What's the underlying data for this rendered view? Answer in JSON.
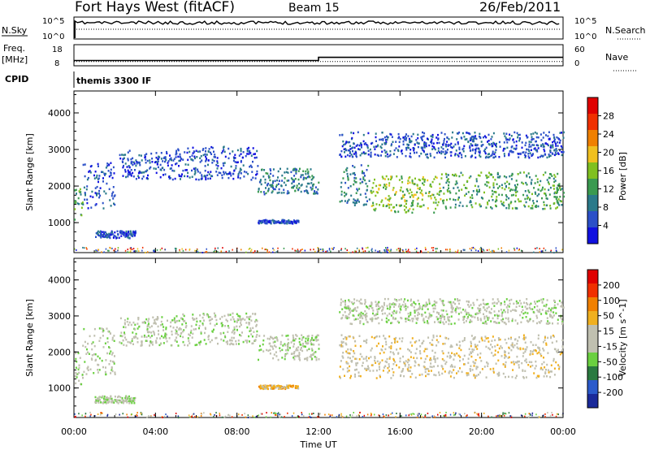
{
  "header": {
    "station": "Fort Hays West (fitACF)",
    "beam": "Beam 15",
    "date": "26/Feb/2011"
  },
  "top_panels": {
    "nsky_label": "N.Sky",
    "nsky_ticks": [
      "10^5",
      "10^0"
    ],
    "nsearch_label": "N.Search",
    "nsearch_ticks": [
      "10^5",
      "10^0"
    ],
    "freq_label": "Freq.",
    "freq_unit": "[MHz]",
    "freq_ticks": [
      "18",
      "8"
    ],
    "nave_label": "Nave",
    "nave_ticks": [
      "60",
      "0"
    ],
    "cpid_label": "CPID",
    "cpid_value": "themis 3300 IF"
  },
  "colors": {
    "power_scale": [
      "#1010e0",
      "#2b50c8",
      "#2a7a8a",
      "#3a9a50",
      "#80c020",
      "#f0c020",
      "#f08000",
      "#f03000",
      "#e00000"
    ],
    "velocity_scale": [
      "#1a2a9a",
      "#2a5acb",
      "#2a7a40",
      "#6ad040",
      "#c0c0b0",
      "#c0c0b0",
      "#f0b020",
      "#f08000",
      "#f03000",
      "#e00000"
    ]
  },
  "chart_data": [
    {
      "type": "line",
      "panel": "N.Sky / N.Search",
      "ylabel": "N.Sky",
      "y2label": "N.Search",
      "y_ticks": [
        "10^5",
        "10^0"
      ],
      "x": [
        "00:00",
        "04:00",
        "08:00",
        "12:00",
        "16:00",
        "20:00",
        "00:00"
      ],
      "series": [
        {
          "name": "N.Sky",
          "style": "solid"
        },
        {
          "name": "N.Search",
          "style": "dotted"
        }
      ]
    },
    {
      "type": "line",
      "panel": "Freq / Nave",
      "ylabel": "Freq. [MHz]",
      "y2label": "Nave",
      "y_ticks": [
        "18",
        "8"
      ],
      "y2_ticks": [
        "60",
        "0"
      ],
      "x": [
        "00:00",
        "04:00",
        "08:00",
        "12:00",
        "16:00",
        "20:00",
        "00:00"
      ],
      "series": [
        {
          "name": "Freq. [MHz]",
          "style": "solid",
          "points": [
            [
              0.0,
              10.5
            ],
            [
              12.0,
              10.5
            ],
            [
              12.0,
              12.0
            ],
            [
              24.0,
              12.0
            ]
          ]
        },
        {
          "name": "Nave",
          "style": "dotted",
          "points": [
            [
              0.0,
              12
            ],
            [
              24.0,
              12
            ]
          ]
        }
      ]
    },
    {
      "type": "heatmap",
      "panel": "Power",
      "xlabel": "Time UT",
      "ylabel": "Slant Range [km]",
      "colorbar_label": "Power [dB]",
      "colorbar_ticks": [
        "4",
        "8",
        "12",
        "16",
        "20",
        "24",
        "28"
      ],
      "xlim": [
        0,
        24
      ],
      "ylim": [
        180,
        4600
      ],
      "y_ticks": [
        "1000",
        "2000",
        "3000",
        "4000"
      ],
      "x_ticks": [
        "00:00",
        "04:00",
        "08:00",
        "12:00",
        "16:00",
        "20:00",
        "00:00"
      ],
      "grid": false,
      "bands": [
        {
          "t0": 0.0,
          "t1": 0.4,
          "r0": 1100,
          "r1": 2000,
          "level": 3
        },
        {
          "t0": 0.4,
          "t1": 2.0,
          "r0": 1400,
          "r1": 2700,
          "level": 1
        },
        {
          "t0": 2.2,
          "t1": 5.0,
          "r0": 2200,
          "r1": 3000,
          "level": 1
        },
        {
          "t0": 5.0,
          "t1": 9.0,
          "r0": 2200,
          "r1": 3100,
          "level": 1
        },
        {
          "t0": 9.0,
          "t1": 12.0,
          "r0": 1800,
          "r1": 2500,
          "level": 2
        },
        {
          "t0": 13.0,
          "t1": 14.5,
          "r0": 1500,
          "r1": 2600,
          "level": 2
        },
        {
          "t0": 14.5,
          "t1": 18.0,
          "r0": 1300,
          "r1": 2300,
          "level": 4
        },
        {
          "t0": 18.0,
          "t1": 24.0,
          "r0": 1400,
          "r1": 2400,
          "level": 3
        },
        {
          "t0": 13.0,
          "t1": 24.0,
          "r0": 2800,
          "r1": 3500,
          "level": 1
        },
        {
          "t0": 1.0,
          "t1": 3.0,
          "r0": 600,
          "r1": 800,
          "level": 1
        },
        {
          "t0": 9.0,
          "t1": 11.0,
          "r0": 1000,
          "r1": 1100,
          "level": 1
        }
      ]
    },
    {
      "type": "heatmap",
      "panel": "Velocity",
      "xlabel": "Time UT",
      "ylabel": "Slant Range [km]",
      "colorbar_label": "Velocity [m s^-1]",
      "colorbar_ticks": [
        "200",
        "100",
        "50",
        "15",
        "-15",
        "-50",
        "-100",
        "-200"
      ],
      "xlim": [
        0,
        24
      ],
      "ylim": [
        180,
        4600
      ],
      "y_ticks": [
        "1000",
        "2000",
        "3000",
        "4000"
      ],
      "x_ticks": [
        "00:00",
        "04:00",
        "08:00",
        "12:00",
        "16:00",
        "20:00",
        "00:00"
      ],
      "grid": false,
      "bands": [
        {
          "t0": 0.0,
          "t1": 0.4,
          "r0": 1100,
          "r1": 2000,
          "level": 4
        },
        {
          "t0": 0.4,
          "t1": 2.0,
          "r0": 1400,
          "r1": 2700,
          "level": 4
        },
        {
          "t0": 2.2,
          "t1": 5.0,
          "r0": 2200,
          "r1": 3000,
          "level": 4
        },
        {
          "t0": 5.0,
          "t1": 9.0,
          "r0": 2200,
          "r1": 3100,
          "level": 4
        },
        {
          "t0": 9.0,
          "t1": 12.0,
          "r0": 1800,
          "r1": 2500,
          "level": 4
        },
        {
          "t0": 13.0,
          "t1": 24.0,
          "r0": 1300,
          "r1": 2500,
          "level": 5
        },
        {
          "t0": 13.0,
          "t1": 24.0,
          "r0": 2800,
          "r1": 3500,
          "level": 4
        },
        {
          "t0": 1.0,
          "t1": 3.0,
          "r0": 600,
          "r1": 800,
          "level": 4
        },
        {
          "t0": 9.0,
          "t1": 11.0,
          "r0": 1000,
          "r1": 1100,
          "level": 6
        }
      ]
    }
  ]
}
